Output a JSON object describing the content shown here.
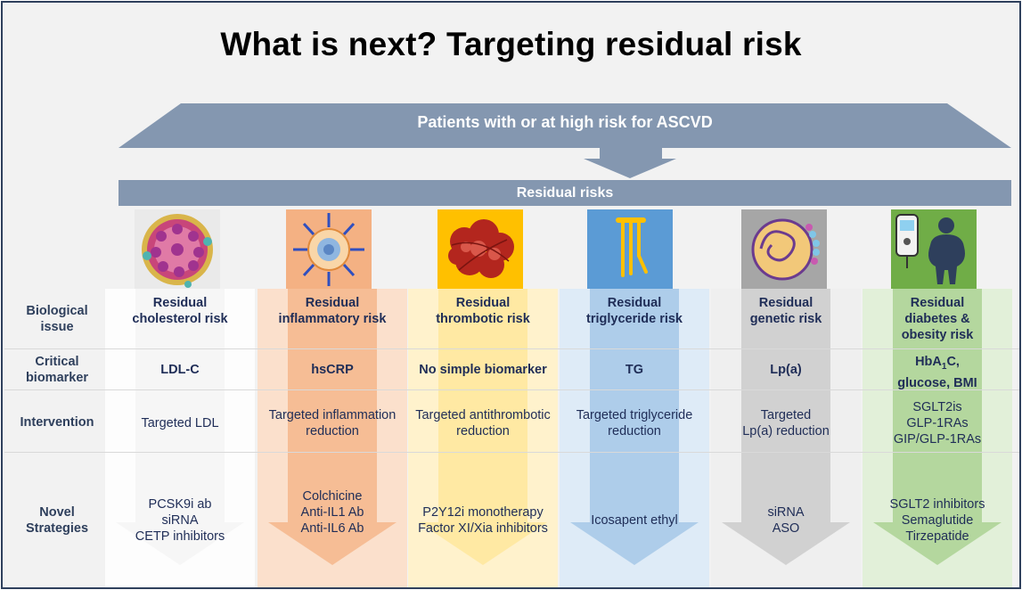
{
  "title": "What is next? Targeting residual risk",
  "banner": "Patients with or at high risk for ASCVD",
  "residual_bar": "Residual risks",
  "row_labels": {
    "biological": "Biological issue",
    "biomarker": "Critical biomarker",
    "intervention": "Intervention",
    "novel": "Novel Strategies"
  },
  "colors": {
    "frame": "#2e3f5c",
    "banner": "#8497b0",
    "text": "#1f2d57",
    "cholesterol": "#ffffff",
    "inflammatory": "#f4b183",
    "thrombotic": "#ffd966",
    "triglyceride": "#9dc3e6",
    "genetic": "#bfbfbf",
    "diabetes": "#a9d18e"
  },
  "columns": [
    {
      "key": "cholesterol",
      "icon": "lipoprotein-particle-icon",
      "issue": [
        "Residual",
        "cholesterol risk"
      ],
      "biomarker": "LDL-C",
      "intervention": [
        "Targeted LDL"
      ],
      "strategies": [
        "PCSK9i ab",
        "siRNA",
        "CETP inhibitors"
      ]
    },
    {
      "key": "inflammatory",
      "icon": "immune-cell-icon",
      "issue": [
        "Residual",
        "inflammatory risk"
      ],
      "biomarker": "hsCRP",
      "intervention": [
        "Targeted inflammation",
        "reduction"
      ],
      "strategies": [
        "Colchicine",
        "Anti-IL1 Ab",
        "Anti-IL6 Ab"
      ]
    },
    {
      "key": "thrombotic",
      "icon": "blood-clot-icon",
      "issue": [
        "Residual",
        "thrombotic risk"
      ],
      "biomarker": "No simple biomarker",
      "intervention": [
        "Targeted antithrombotic",
        "reduction"
      ],
      "strategies": [
        "P2Y12i monotherapy",
        "Factor XI/Xia inhibitors"
      ]
    },
    {
      "key": "triglyceride",
      "icon": "triglyceride-molecule-icon",
      "issue": [
        "Residual",
        "triglyceride risk"
      ],
      "biomarker": "TG",
      "intervention": [
        "Targeted triglyceride",
        "reduction"
      ],
      "strategies": [
        "Icosapent ethyl"
      ]
    },
    {
      "key": "genetic",
      "icon": "lipoprotein-a-icon",
      "issue": [
        "Residual",
        "genetic risk"
      ],
      "biomarker": "Lp(a)",
      "intervention": [
        "Targeted",
        "Lp(a) reduction"
      ],
      "strategies": [
        "siRNA",
        "ASO"
      ]
    },
    {
      "key": "diabetes",
      "icon": "glucometer-obesity-icon",
      "issue": [
        "Residual",
        "diabetes &",
        "obesity risk"
      ],
      "biomarker_parts": [
        "HbA",
        "1",
        "C,",
        "glucose, BMI"
      ],
      "intervention": [
        "SGLT2is",
        "GLP-1RAs",
        "GIP/GLP-1RAs"
      ],
      "strategies": [
        "SGLT2 inhibitors",
        "Semaglutide",
        "Tirzepatide"
      ]
    }
  ]
}
